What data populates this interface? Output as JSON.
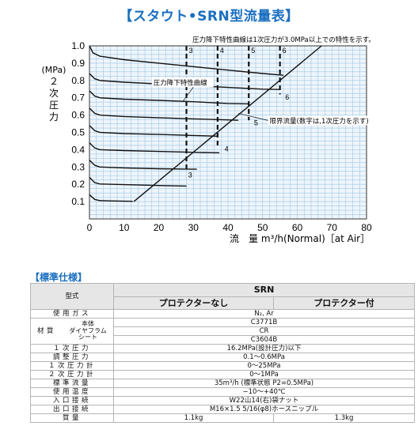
{
  "title": "【スタウト•SRN型流量表】",
  "chart_data": {
    "type": "line",
    "ylabel_lines": [
      "(MPa)",
      "２",
      "次",
      "圧",
      "力"
    ],
    "xlabel": "流　量 m³/h(Normal)［at Air］",
    "xlim": [
      0,
      80
    ],
    "ylim": [
      0,
      1.0
    ],
    "xticks": [
      "0",
      "10",
      "20",
      "30",
      "40",
      "50",
      "60",
      "70",
      "80"
    ],
    "yticks": [
      "0.1",
      "0.2",
      "0.3",
      "0.4",
      "0.5",
      "0.6",
      "0.7",
      "0.8",
      "0.9",
      "1.0"
    ],
    "grid": true,
    "series": [
      {
        "set_pressure": 0.14,
        "points": [
          [
            0,
            0.14
          ],
          [
            1.5,
            0.113
          ],
          [
            3,
            0.106
          ],
          [
            6,
            0.104
          ],
          [
            9,
            0.103
          ],
          [
            12.5,
            0.102
          ]
        ]
      },
      {
        "set_pressure": 0.24,
        "points": [
          [
            0,
            0.24
          ],
          [
            1.5,
            0.21
          ],
          [
            3,
            0.202
          ],
          [
            10,
            0.198
          ],
          [
            20,
            0.193
          ],
          [
            28,
            0.19
          ]
        ]
      },
      {
        "set_pressure": 0.34,
        "points": [
          [
            0,
            0.34
          ],
          [
            1.5,
            0.31
          ],
          [
            3,
            0.3
          ],
          [
            10,
            0.295
          ],
          [
            20,
            0.29
          ],
          [
            28,
            0.288
          ],
          [
            31,
            0.287
          ]
        ]
      },
      {
        "set_pressure": 0.44,
        "points": [
          [
            0,
            0.44
          ],
          [
            1.5,
            0.41
          ],
          [
            3,
            0.4
          ],
          [
            10,
            0.395
          ],
          [
            20,
            0.39
          ],
          [
            30,
            0.385
          ],
          [
            37.5,
            0.382
          ]
        ]
      },
      {
        "set_pressure": 0.54,
        "points": [
          [
            0,
            0.54
          ],
          [
            1.5,
            0.51
          ],
          [
            3,
            0.5
          ],
          [
            10,
            0.493
          ],
          [
            20,
            0.488
          ],
          [
            30,
            0.482
          ],
          [
            37,
            0.478
          ]
        ]
      },
      {
        "set_pressure": 0.64,
        "points": [
          [
            0,
            0.64
          ],
          [
            1.5,
            0.61
          ],
          [
            3,
            0.6
          ],
          [
            10,
            0.592
          ],
          [
            20,
            0.585
          ],
          [
            30,
            0.578
          ],
          [
            40,
            0.572
          ],
          [
            43,
            0.57
          ]
        ]
      },
      {
        "set_pressure": 0.74,
        "points": [
          [
            0,
            0.74
          ],
          [
            1.5,
            0.71
          ],
          [
            3,
            0.7
          ],
          [
            10,
            0.692
          ],
          [
            20,
            0.685
          ],
          [
            30,
            0.677
          ],
          [
            40,
            0.667
          ],
          [
            46,
            0.665
          ]
        ]
      },
      {
        "set_pressure": 0.84,
        "points": [
          [
            0,
            0.84
          ],
          [
            1.5,
            0.81
          ],
          [
            3,
            0.8
          ],
          [
            10,
            0.79
          ],
          [
            20,
            0.78
          ],
          [
            30,
            0.77
          ],
          [
            40,
            0.76
          ],
          [
            50,
            0.75
          ],
          [
            55,
            0.748
          ]
        ]
      },
      {
        "set_pressure": 1.0,
        "points": [
          [
            0,
            1.0
          ],
          [
            1,
            0.96
          ],
          [
            3,
            0.94
          ],
          [
            10,
            0.92
          ],
          [
            20,
            0.9
          ],
          [
            30,
            0.88
          ],
          [
            40,
            0.86
          ],
          [
            50,
            0.84
          ],
          [
            56,
            0.83
          ]
        ]
      }
    ],
    "critical_line": {
      "points": [
        [
          12.8,
          0.1
        ],
        [
          67,
          1.0
        ]
      ]
    },
    "dashed_lines": [
      {
        "label": "3",
        "x": 28,
        "y_bottom": 0.27
      },
      {
        "label": "4",
        "x": 37,
        "y_bottom": 0.42
      },
      {
        "label": "5",
        "x": 46,
        "y_bottom": 0.57
      },
      {
        "label": "6",
        "x": 55,
        "y_bottom": 0.72
      }
    ],
    "intersection_labels": [
      {
        "label": "3",
        "x": 28.5,
        "y": 0.24
      },
      {
        "label": "4",
        "x": 39,
        "y": 0.39
      },
      {
        "label": "5",
        "x": 47.5,
        "y": 0.54
      },
      {
        "label": "6",
        "x": 56.5,
        "y": 0.69
      }
    ],
    "annotations": {
      "top_note": "圧力降下特性曲線は1次圧力が3.0MPa以上での特性を示す。",
      "curve_label": "圧力降下特性曲線",
      "critical_label": "限界流量(数字は,1次圧力を示す)"
    }
  },
  "spec": {
    "heading": "【標準仕様】",
    "model_label": "型式",
    "model_name": "SRN",
    "col1": "プロテクターなし",
    "col2": "プロテクター付",
    "rows": {
      "gas_label": "使用ガス",
      "gas": "N₂, Ar",
      "material_label": "材質",
      "body_label": "本体",
      "body": "C3771B",
      "diaphragm_label": "ダイヤフラム",
      "diaphragm": "CR",
      "seat_label": "シート",
      "seat": "C3604B",
      "p1_label": "１次圧力",
      "p1": "16.2MPa(設計圧力)以下",
      "adj_label": "調整圧力",
      "adj": "0.1〜0.6MPa",
      "g1_label": "１次圧力計",
      "g1": "0〜25MPa",
      "g2_label": "２次圧力計",
      "g2": "0〜1MPa",
      "flow_label": "標準流量",
      "flow": "35m³/h (標準状態 P2=0.5MPa)",
      "temp_label": "使用温度",
      "temp": "−10〜+40℃",
      "in_label": "入口接続",
      "inlet": "W22山14(右)袋ナット",
      "out_label": "出口接続",
      "outlet": "M16×1.5  5/16(φ8)ホースニップル",
      "mass_label": "質量",
      "mass1": "1.1kg",
      "mass2": "1.3kg"
    }
  }
}
